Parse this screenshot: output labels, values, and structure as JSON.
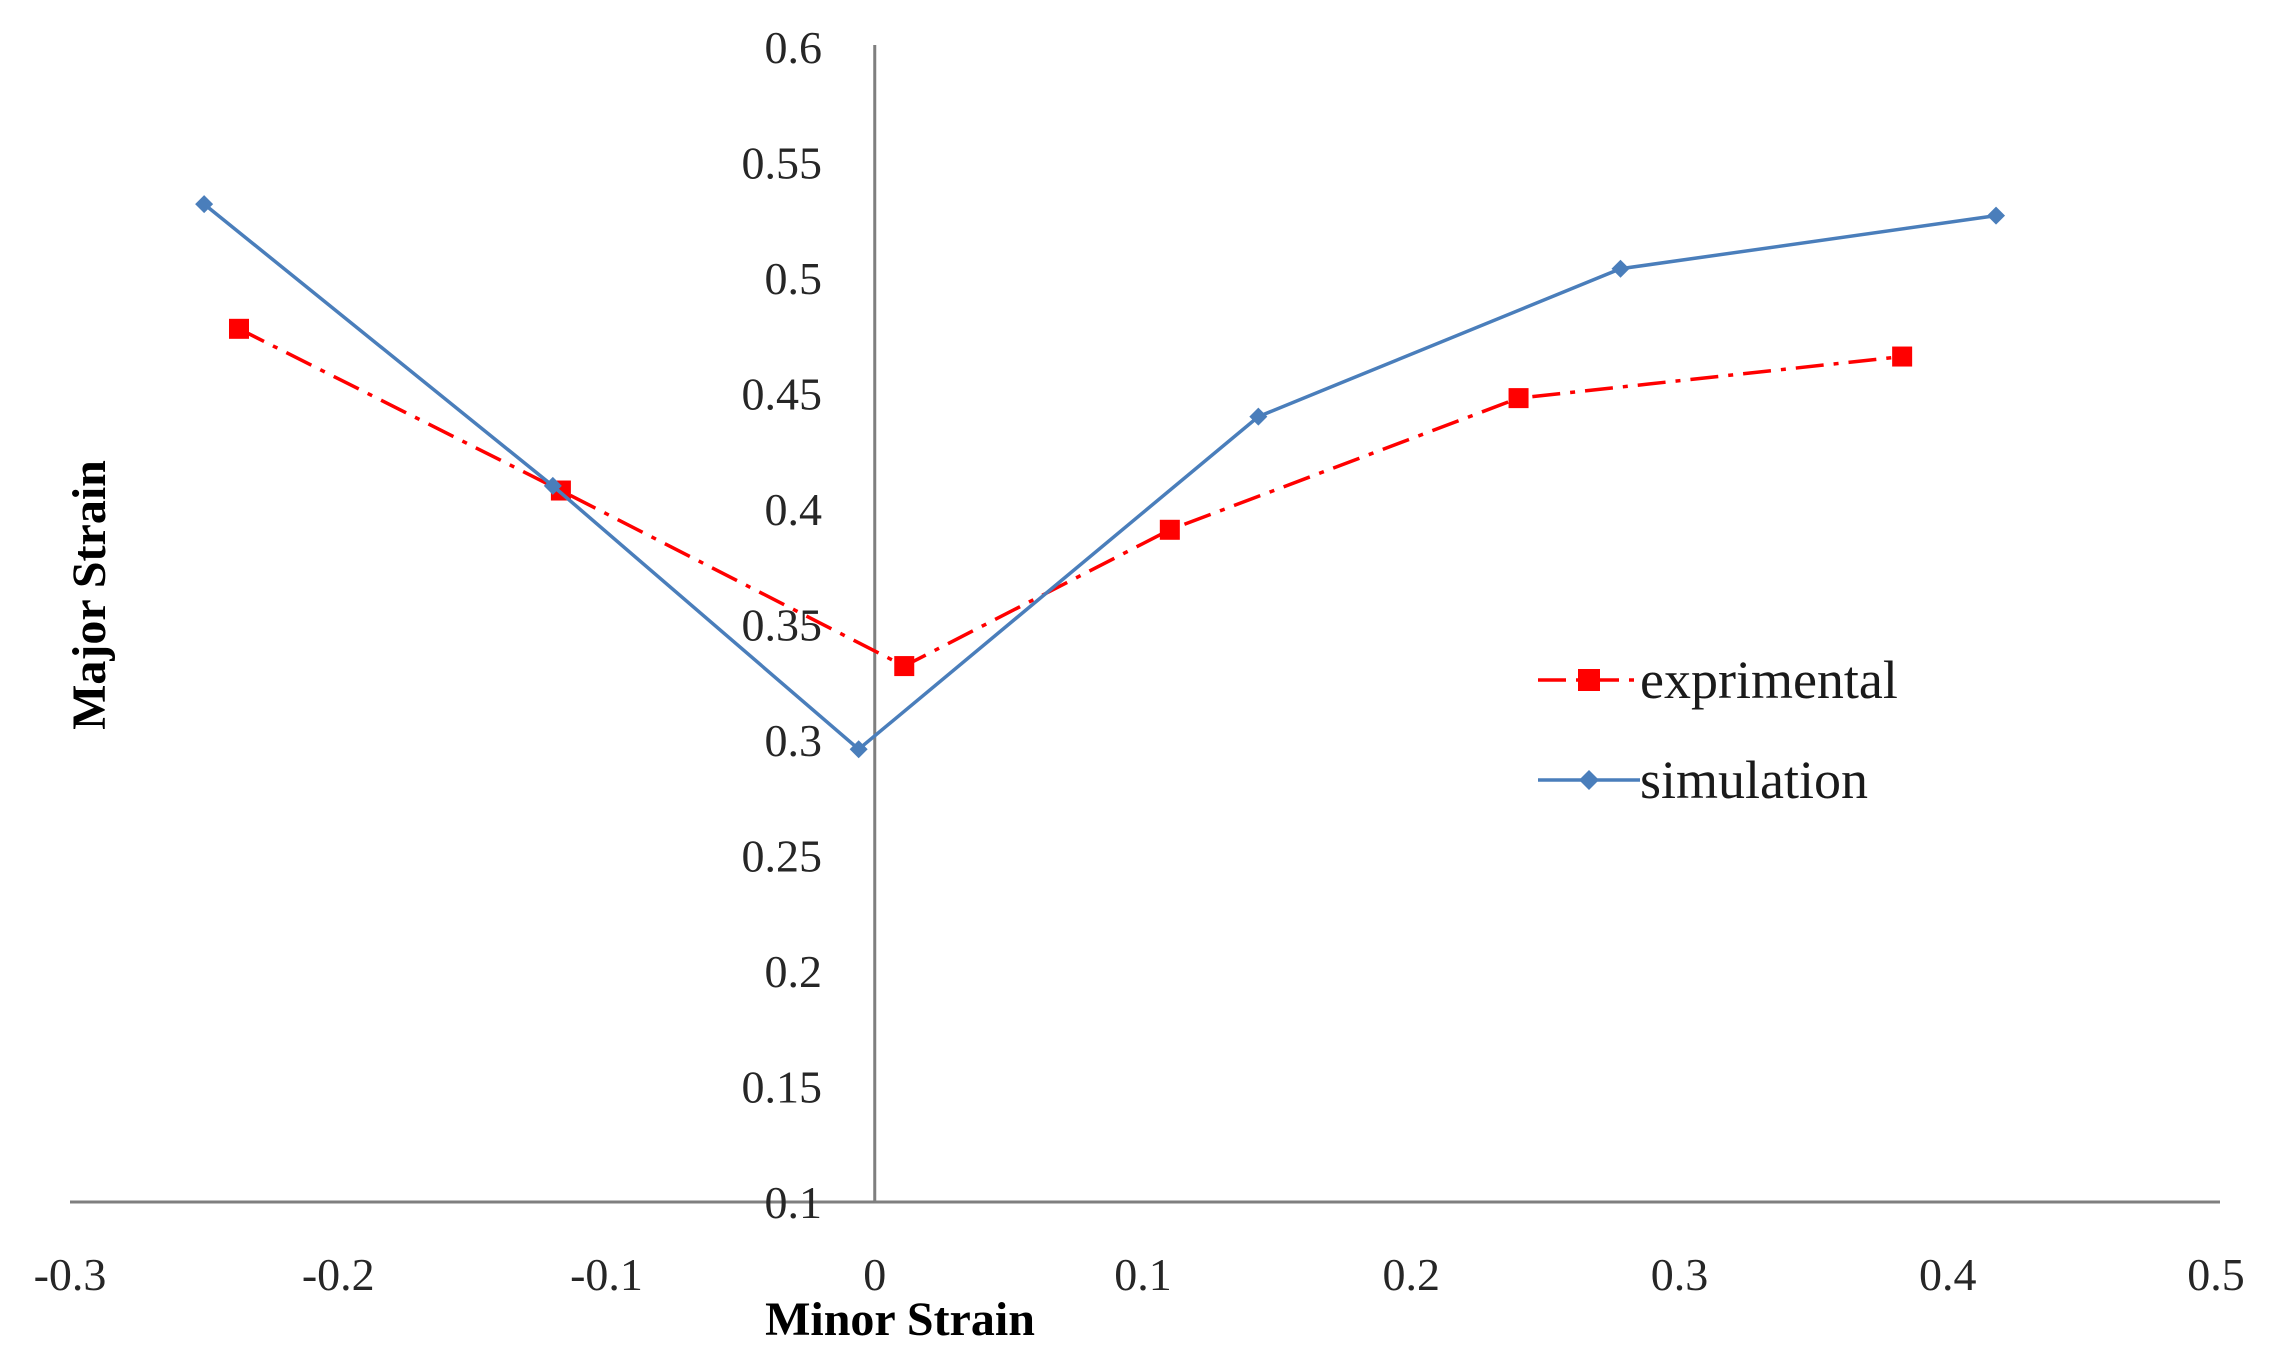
{
  "chart_data": {
    "type": "line",
    "title": "",
    "xlabel": "Minor Strain",
    "ylabel": "Major Strain",
    "xlim": [
      -0.3,
      0.5
    ],
    "ylim": [
      0.1,
      0.6
    ],
    "x_ticks": [
      -0.3,
      -0.2,
      -0.1,
      0,
      0.1,
      0.2,
      0.3,
      0.4,
      0.5
    ],
    "x_tick_labels": [
      "-0.3",
      "-0.2",
      "-0.1",
      "0",
      "0.1",
      "0.2",
      "0.3",
      "0.4",
      "0.5"
    ],
    "y_ticks": [
      0.1,
      0.15,
      0.2,
      0.25,
      0.3,
      0.35,
      0.4,
      0.45,
      0.5,
      0.55,
      0.6
    ],
    "y_tick_labels": [
      "0.1",
      "0.15",
      "0.2",
      "0.25",
      "0.3",
      "0.35",
      "0.4",
      "0.45",
      "0.5",
      "0.55",
      "0.6"
    ],
    "grid": false,
    "legend_position": "right",
    "series": [
      {
        "name": "exprimental",
        "color": "#ff0000",
        "line_style": "dash-dot",
        "marker": "square",
        "x": [
          -0.237,
          -0.117,
          0.011,
          0.11,
          0.24,
          0.383
        ],
        "y": [
          0.478,
          0.408,
          0.332,
          0.391,
          0.448,
          0.466
        ]
      },
      {
        "name": "simulation",
        "color": "#4a7ebb",
        "line_style": "solid",
        "marker": "diamond",
        "x": [
          -0.25,
          -0.12,
          -0.006,
          0.143,
          0.278,
          0.418
        ],
        "y": [
          0.532,
          0.41,
          0.296,
          0.44,
          0.504,
          0.527
        ]
      }
    ]
  }
}
